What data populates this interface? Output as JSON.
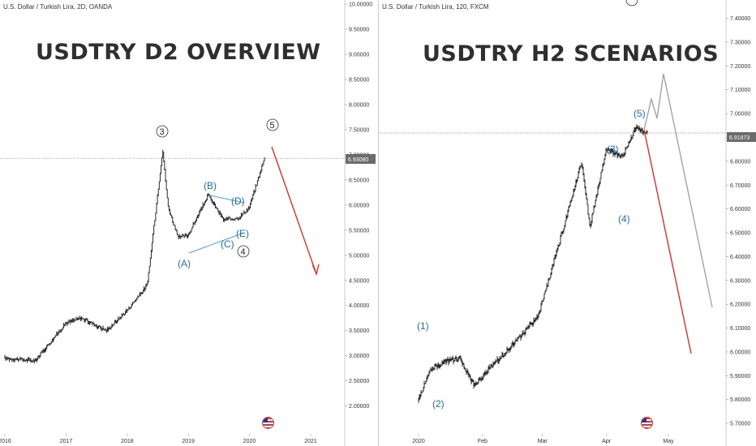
{
  "charts": {
    "left": {
      "symbol": "U.S. Dollar / Turkish Lira, 2D, OANDA",
      "title": "USDTRY D2 OVERVIEW",
      "price_tag": "6.93080",
      "y_ticks": [
        "10.00000",
        "9.50000",
        "9.00000",
        "8.50000",
        "8.00000",
        "7.50000",
        "7.00000",
        "6.50000",
        "6.00000",
        "5.50000",
        "5.00000",
        "4.50000",
        "4.00000",
        "3.50000",
        "3.00000",
        "2.50000",
        "2.00000"
      ],
      "x_ticks": [
        "2016",
        "2017",
        "2018",
        "2019",
        "2020",
        "2021"
      ],
      "wave_labels": {
        "w3": "3",
        "w5": "5",
        "w4": "4",
        "A": "(A)",
        "B": "(B)",
        "C": "(C)",
        "D": "(D)",
        "E": "(E)"
      }
    },
    "right": {
      "symbol": "U.S. Dollar / Turkish Lira, 120, FXCM",
      "title": "USDTRY H2 SCENARIOS",
      "price_tag": "6.91873",
      "y_ticks": [
        "7.40000",
        "7.30000",
        "7.20000",
        "7.10000",
        "7.00000",
        "6.90000",
        "6.80000",
        "6.70000",
        "6.60000",
        "6.50000",
        "6.40000",
        "6.30000",
        "6.20000",
        "6.10000",
        "6.00000",
        "5.90000",
        "5.80000",
        "5.70000"
      ],
      "x_ticks": [
        "2020",
        "Feb",
        "Mar",
        "Apr",
        "May"
      ],
      "wave_labels": {
        "w1": "(1)",
        "w2": "(2)",
        "w3": "(3)",
        "w4": "(4)",
        "w5": "(5)"
      }
    }
  },
  "chart_data": [
    {
      "type": "line",
      "title": "USDTRY D2 OVERVIEW",
      "x": [
        "2016-01",
        "2016-07",
        "2017-01",
        "2017-04",
        "2017-09",
        "2018-01",
        "2018-05",
        "2018-08",
        "2018-09",
        "2018-11",
        "2019-01",
        "2019-05",
        "2019-08",
        "2019-11",
        "2020-01",
        "2020-04"
      ],
      "series": [
        {
          "values": [
            2.95,
            2.9,
            3.65,
            3.75,
            3.5,
            3.9,
            4.4,
            7.1,
            6.0,
            5.35,
            5.4,
            6.2,
            5.7,
            5.75,
            5.95,
            6.93
          ]
        }
      ],
      "ylim": [
        1.8,
        10.05
      ],
      "scenario": {
        "color": "#e8201a",
        "from": 6.93,
        "to": 4.7
      }
    },
    {
      "type": "line",
      "title": "USDTRY H2 SCENARIOS",
      "x": [
        "2020-01-01",
        "2020-01-07",
        "2020-01-14",
        "2020-01-21",
        "2020-01-28",
        "2020-02-10",
        "2020-02-20",
        "2020-02-28",
        "2020-03-10",
        "2020-03-20",
        "2020-03-24",
        "2020-04-01",
        "2020-04-09",
        "2020-04-15",
        "2020-04-21"
      ],
      "series": [
        {
          "values": [
            5.8,
            5.93,
            5.96,
            5.97,
            5.86,
            5.98,
            6.07,
            6.15,
            6.48,
            6.8,
            6.52,
            6.85,
            6.82,
            6.94,
            6.92
          ]
        }
      ],
      "ylim": [
        5.68,
        7.47
      ],
      "scenarios": [
        {
          "color": "#e8201a",
          "from": 6.92,
          "to": 6.0
        },
        {
          "color": "#9e9e9e",
          "path": [
            6.92,
            7.1,
            6.99,
            7.18,
            6.2
          ]
        }
      ]
    }
  ]
}
